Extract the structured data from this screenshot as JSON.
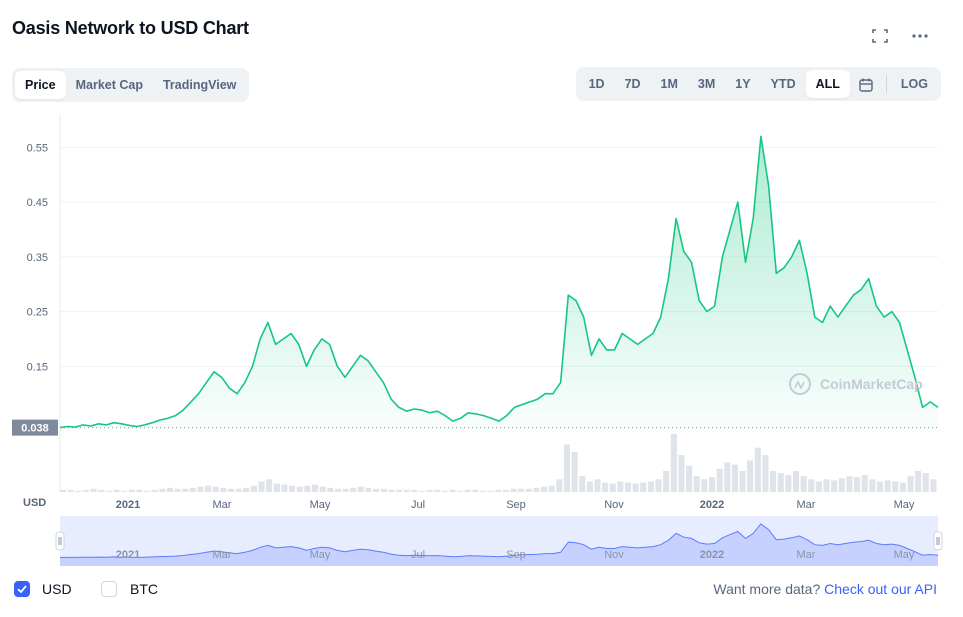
{
  "title": "Oasis Network to USD Chart",
  "icons": {
    "fullscreen": "fullscreen-icon",
    "more": "more-options-icon",
    "calendar": "calendar-icon",
    "watermark": "coinmarketcap-logo-icon",
    "check": "checkmark-icon"
  },
  "view_tabs": [
    {
      "label": "Price",
      "active": true
    },
    {
      "label": "Market Cap",
      "active": false
    },
    {
      "label": "TradingView",
      "active": false
    }
  ],
  "ranges": [
    {
      "label": "1D",
      "active": false
    },
    {
      "label": "7D",
      "active": false
    },
    {
      "label": "1M",
      "active": false
    },
    {
      "label": "3M",
      "active": false
    },
    {
      "label": "1Y",
      "active": false
    },
    {
      "label": "YTD",
      "active": false
    },
    {
      "label": "ALL",
      "active": true
    }
  ],
  "log_label": "LOG",
  "currency_label": "USD",
  "watermark": "CoinMarketCap",
  "colors": {
    "line": "#16c784",
    "accent": "#3861fb",
    "brush": "#5b7cff",
    "text_muted": "#58667e"
  },
  "chart_data": {
    "type": "area",
    "title": "Oasis Network to USD Chart",
    "series": [
      {
        "values": [
          0.038,
          0.04,
          0.039,
          0.043,
          0.041,
          0.045,
          0.043,
          0.047,
          0.045,
          0.042,
          0.04,
          0.043,
          0.047,
          0.052,
          0.055,
          0.06,
          0.07,
          0.085,
          0.1,
          0.12,
          0.14,
          0.13,
          0.11,
          0.1,
          0.12,
          0.15,
          0.2,
          0.23,
          0.19,
          0.2,
          0.21,
          0.19,
          0.15,
          0.18,
          0.2,
          0.19,
          0.15,
          0.13,
          0.15,
          0.17,
          0.16,
          0.14,
          0.12,
          0.09,
          0.075,
          0.068,
          0.072,
          0.07,
          0.065,
          0.068,
          0.06,
          0.05,
          0.055,
          0.065,
          0.063,
          0.06,
          0.055,
          0.05,
          0.06,
          0.075,
          0.08,
          0.085,
          0.09,
          0.1,
          0.1,
          0.12,
          0.28,
          0.27,
          0.24,
          0.17,
          0.2,
          0.18,
          0.18,
          0.21,
          0.2,
          0.19,
          0.2,
          0.21,
          0.24,
          0.31,
          0.42,
          0.36,
          0.34,
          0.27,
          0.25,
          0.26,
          0.35,
          0.4,
          0.45,
          0.34,
          0.42,
          0.57,
          0.48,
          0.32,
          0.33,
          0.35,
          0.38,
          0.32,
          0.24,
          0.23,
          0.26,
          0.24,
          0.26,
          0.28,
          0.29,
          0.31,
          0.26,
          0.24,
          0.25,
          0.23,
          0.18,
          0.13,
          0.075,
          0.085,
          0.075
        ]
      }
    ],
    "x_tick_labels": [
      "2021",
      "Mar",
      "May",
      "Jul",
      "Sep",
      "Nov",
      "2022",
      "Mar",
      "May"
    ],
    "y_tick_labels": [
      "0.55",
      "0.45",
      "0.35",
      "0.25",
      "0.15"
    ],
    "y_ticks": [
      0.55,
      0.45,
      0.35,
      0.25,
      0.15
    ],
    "ylim": [
      0.03,
      0.6
    ],
    "current_price_label": "0.038",
    "volume_values": [
      2,
      2,
      1,
      2,
      3,
      2,
      1,
      2,
      1,
      2,
      2,
      1,
      2,
      3,
      4,
      3,
      3,
      4,
      5,
      6,
      5,
      4,
      3,
      3,
      4,
      6,
      10,
      12,
      8,
      7,
      6,
      5,
      6,
      7,
      5,
      4,
      3,
      3,
      4,
      5,
      4,
      3,
      3,
      2,
      2,
      2,
      2,
      1,
      2,
      2,
      1,
      2,
      1,
      2,
      2,
      1,
      1,
      2,
      2,
      3,
      3,
      3,
      4,
      5,
      6,
      12,
      45,
      38,
      15,
      10,
      12,
      9,
      8,
      10,
      9,
      8,
      9,
      10,
      12,
      20,
      55,
      35,
      25,
      15,
      12,
      14,
      22,
      28,
      26,
      20,
      30,
      42,
      35,
      20,
      18,
      16,
      20,
      15,
      12,
      10,
      12,
      11,
      13,
      15,
      14,
      16,
      12,
      10,
      11,
      10,
      9,
      15,
      20,
      18,
      12
    ],
    "grid": true,
    "legend": "none"
  },
  "footer": {
    "usd_label": "USD",
    "btc_label": "BTC",
    "usd_checked": true,
    "btc_checked": false,
    "api_prefix": "Want more data?",
    "api_link": "Check out our API"
  }
}
